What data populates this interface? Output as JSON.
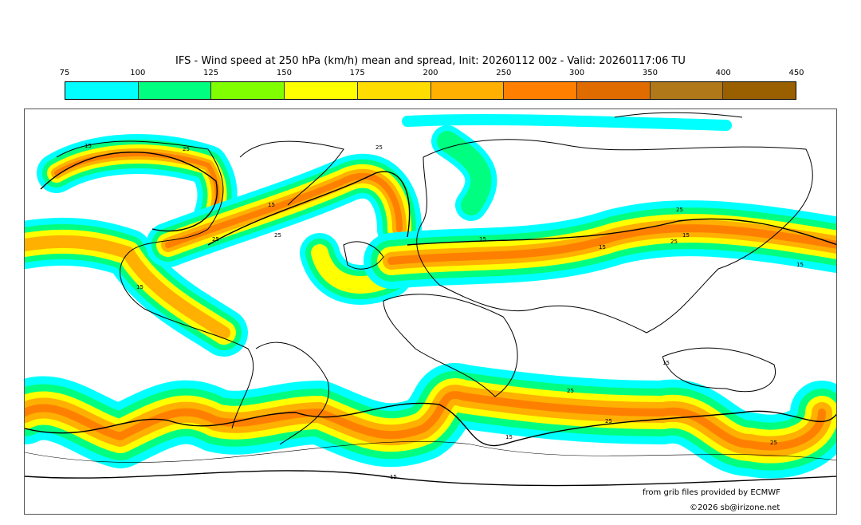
{
  "title": "IFS - Wind speed at 250 hPa (km/h) mean and spread, Init: 20260112 00z - Valid: 20260117:06 TU",
  "colorbar": {
    "ticks": [
      "75",
      "100",
      "125",
      "150",
      "175",
      "200",
      "250",
      "300",
      "350",
      "400",
      "450"
    ],
    "colors": [
      "#00ffff",
      "#00ff80",
      "#80ff00",
      "#ffff00",
      "#ffdd00",
      "#ffb000",
      "#ff8000",
      "#e06c00",
      "#b07818",
      "#9a6000"
    ]
  },
  "contour_labels": [
    "15",
    "25",
    "15",
    "25",
    "25",
    "15",
    "25",
    "15",
    "15",
    "25",
    "15",
    "25",
    "15",
    "15",
    "25",
    "25",
    "15",
    "25",
    "15"
  ],
  "credits": {
    "source": "from grib files provided by ECMWF",
    "copyright": "©2026 sb@irizone.net"
  }
}
